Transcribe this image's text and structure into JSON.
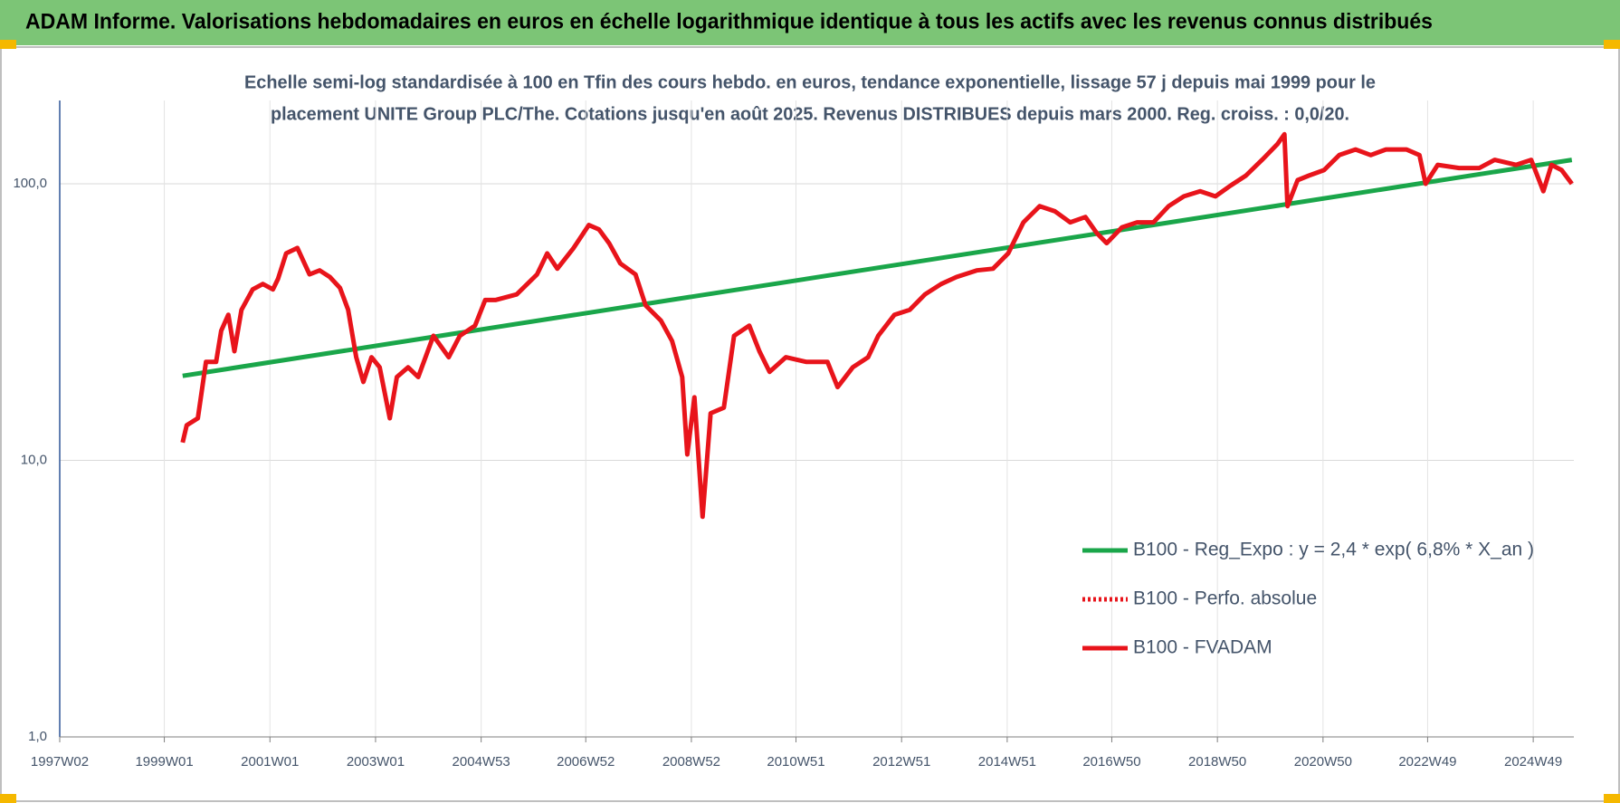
{
  "chart_data": {
    "type": "line",
    "title": "ADAM Informe. Valorisations hebdomadaires en euros en échelle logarithmique identique à tous les actifs avec les revenus connus distribués",
    "subtitle": [
      "Echelle semi-log standardisée à 100 en Tfin des cours hebdo. en euros, tendance exponentielle, lissage 57 j depuis mai 1999 pour le",
      "placement UNITE Group PLC/The. Cotations jusqu'en août 2025. Revenus DISTRIBUES depuis mars 2000. Reg. croiss. : 0,0/20."
    ],
    "log_scale": true,
    "grid": true,
    "legend": "lower-right",
    "xlim": [
      "1997W02",
      "2025W37"
    ],
    "xticks": [
      "1997W02",
      "1999W01",
      "2001W01",
      "2003W01",
      "2004W53",
      "2006W52",
      "2008W52",
      "2010W51",
      "2012W51",
      "2014W51",
      "2016W50",
      "2018W50",
      "2020W50",
      "2022W49",
      "2024W49"
    ],
    "ylim": [
      1,
      200
    ],
    "yticks": [
      {
        "value": 1,
        "label": "1,0"
      },
      {
        "value": 10,
        "label": "10,0"
      },
      {
        "value": 100,
        "label": "100,0"
      }
    ],
    "series": [
      {
        "name": "B100 - Reg_Expo : y = 2,4 * exp( 6,8% *  X_an )",
        "color": "#1aa64a",
        "style": "solid",
        "x": [
          "1999W19",
          "2025W35"
        ],
        "values": [
          20.2,
          122
        ]
      },
      {
        "name": "B100 - Perfo. absolue",
        "color": "#e8141b",
        "style": "dotted",
        "x": [],
        "values": []
      },
      {
        "name": "B100 - FVADAM",
        "color": "#e8141b",
        "style": "solid",
        "x": [
          "1999W19",
          "1999W23",
          "1999W34",
          "1999W42",
          "1999W52",
          "2000W05",
          "2000W12",
          "2000W18",
          "2000W25",
          "2000W36",
          "2000W46",
          "2001W04",
          "2001W09",
          "2001W17",
          "2001W28",
          "2001W40",
          "2001W50",
          "2002W08",
          "2002W18",
          "2002W26",
          "2002W34",
          "2002W41",
          "2002W49",
          "2003W05",
          "2003W15",
          "2003W22",
          "2003W33",
          "2003W43",
          "2004W06",
          "2004W21",
          "2004W32",
          "2004W47",
          "2005W05",
          "2005W15",
          "2005W36",
          "2006W04",
          "2006W14",
          "2006W24",
          "2006W40",
          "2007W03",
          "2007W13",
          "2007W23",
          "2007W34",
          "2007W49",
          "2008W07",
          "2008W22",
          "2008W33",
          "2008W43",
          "2008W48",
          "2009W03",
          "2009W11",
          "2009W19",
          "2009W32",
          "2009W42",
          "2010W05",
          "2010W15",
          "2010W25",
          "2010W41",
          "2011W09",
          "2011W30",
          "2011W40",
          "2012W03",
          "2012W18",
          "2012W28",
          "2012W44",
          "2013W07",
          "2013W22",
          "2013W38",
          "2014W01",
          "2014W21",
          "2014W37",
          "2014W52",
          "2015W15",
          "2015W31",
          "2015W46",
          "2016W09",
          "2016W24",
          "2016W35",
          "2016W45",
          "2017W08",
          "2017W23",
          "2017W39",
          "2018W02",
          "2018W17",
          "2018W33",
          "2018W48",
          "2019W11",
          "2019W26",
          "2019W42",
          "2020W05",
          "2020W12",
          "2020W15",
          "2020W25",
          "2020W36",
          "2020W51",
          "2021W14",
          "2021W30",
          "2021W45",
          "2022W08",
          "2022W28",
          "2022W41",
          "2022W47",
          "2023W07",
          "2023W28",
          "2023W48",
          "2024W11",
          "2024W32",
          "2024W47",
          "2025W07",
          "2025W15",
          "2025W25",
          "2025W35"
        ],
        "values": [
          11.6,
          13.4,
          14.2,
          22.7,
          22.7,
          29.4,
          33.6,
          24.8,
          35,
          41.5,
          43.4,
          41.5,
          45.3,
          56,
          58.6,
          47,
          48.6,
          46,
          42,
          35,
          23.6,
          19.2,
          23.6,
          21.7,
          14.2,
          20,
          21.7,
          20,
          28.2,
          23.6,
          28.2,
          30.7,
          38,
          38,
          39.8,
          47,
          56,
          49.3,
          58.6,
          70.9,
          68.4,
          61,
          51.5,
          47,
          36.3,
          32,
          27,
          20,
          10.5,
          16.9,
          6.25,
          14.8,
          15.5,
          28.2,
          30.7,
          24.8,
          20.9,
          23.6,
          22.7,
          22.7,
          18.4,
          21.7,
          23.6,
          28.2,
          33.6,
          35,
          39.8,
          43.4,
          46,
          48.6,
          49.3,
          56,
          72.5,
          83,
          79.5,
          72.5,
          75.8,
          66.5,
          61,
          69.6,
          72.5,
          72.5,
          83,
          90,
          94,
          90,
          98.5,
          107,
          122,
          139,
          151,
          83,
          103,
          107,
          112,
          127,
          133,
          127,
          133,
          133,
          127,
          100,
          117,
          114,
          114,
          122,
          117,
          122,
          94,
          117,
          112,
          100
        ]
      }
    ]
  }
}
